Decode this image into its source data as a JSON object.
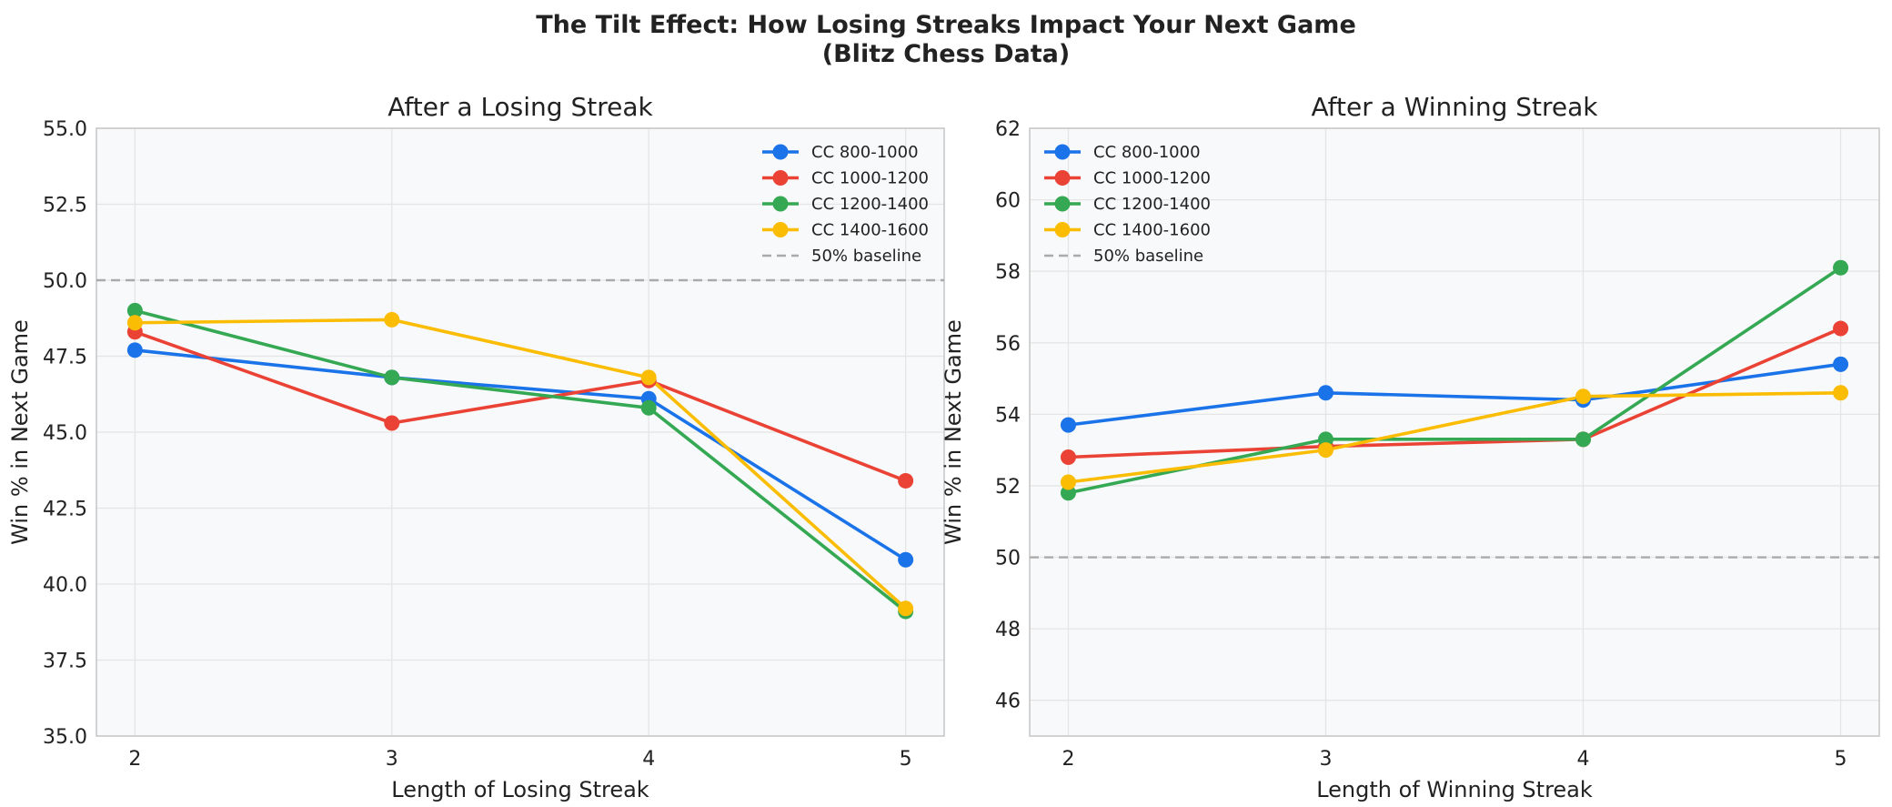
{
  "figure": {
    "title_line1": "The Tilt Effect: How Losing Streaks Impact Your Next Game",
    "title_line2": "(Blitz Chess Data)"
  },
  "chart_data": [
    {
      "type": "line",
      "title": "After a Losing Streak",
      "xlabel": "Length of Losing Streak",
      "ylabel": "Win % in Next Game",
      "x": [
        2,
        3,
        4,
        5
      ],
      "ylim": [
        35.0,
        55.0
      ],
      "yticks": [
        "35.0",
        "37.5",
        "40.0",
        "42.5",
        "45.0",
        "47.5",
        "50.0",
        "52.5",
        "55.0"
      ],
      "ytick_values": [
        35.0,
        37.5,
        40.0,
        42.5,
        45.0,
        47.5,
        50.0,
        52.5,
        55.0
      ],
      "grid": true,
      "legend_position": "upper right",
      "baseline": {
        "name": "50% baseline",
        "value": 50,
        "color": "#aaaaaa"
      },
      "series": [
        {
          "name": "CC 800-1000",
          "color": "#1a73e8",
          "values": [
            47.7,
            46.8,
            46.1,
            40.8
          ]
        },
        {
          "name": "CC 1000-1200",
          "color": "#ea4335",
          "values": [
            48.3,
            45.3,
            46.7,
            43.4
          ]
        },
        {
          "name": "CC 1200-1400",
          "color": "#34a853",
          "values": [
            49.0,
            46.8,
            45.8,
            39.1
          ]
        },
        {
          "name": "CC 1400-1600",
          "color": "#fbbc04",
          "values": [
            48.6,
            48.7,
            46.8,
            39.2
          ]
        }
      ]
    },
    {
      "type": "line",
      "title": "After a Winning Streak",
      "xlabel": "Length of Winning Streak",
      "ylabel": "Win % in Next Game",
      "x": [
        2,
        3,
        4,
        5
      ],
      "ylim": [
        45.0,
        62.0
      ],
      "yticks": [
        "46",
        "48",
        "50",
        "52",
        "54",
        "56",
        "58",
        "60",
        "62"
      ],
      "ytick_values": [
        46,
        48,
        50,
        52,
        54,
        56,
        58,
        60,
        62
      ],
      "grid": true,
      "legend_position": "upper left",
      "baseline": {
        "name": "50% baseline",
        "value": 50,
        "color": "#aaaaaa"
      },
      "series": [
        {
          "name": "CC 800-1000",
          "color": "#1a73e8",
          "values": [
            53.7,
            54.6,
            54.4,
            55.4
          ]
        },
        {
          "name": "CC 1000-1200",
          "color": "#ea4335",
          "values": [
            52.8,
            53.1,
            53.3,
            56.4
          ]
        },
        {
          "name": "CC 1200-1400",
          "color": "#34a853",
          "values": [
            51.8,
            53.3,
            53.3,
            58.1
          ]
        },
        {
          "name": "CC 1400-1600",
          "color": "#fbbc04",
          "values": [
            52.1,
            53.0,
            54.5,
            54.6
          ]
        }
      ]
    }
  ]
}
